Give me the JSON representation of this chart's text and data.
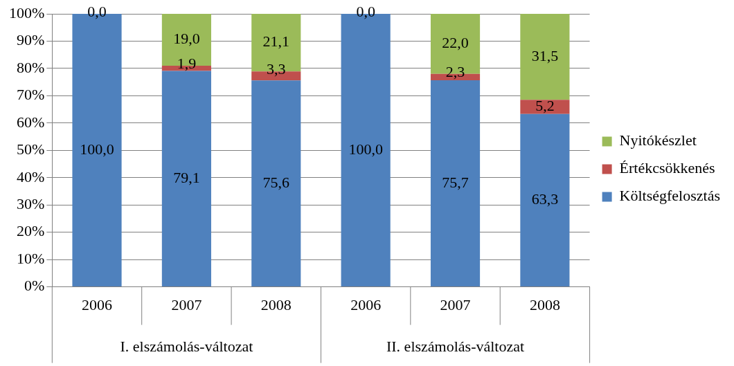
{
  "chart_data": {
    "type": "bar",
    "stacked": true,
    "categories": [
      "2006",
      "2007",
      "2008",
      "2006",
      "2007",
      "2008"
    ],
    "series": [
      {
        "name": "Költségfelosztás",
        "color": "#4f81bd",
        "values": [
          100,
          79.1,
          75.6,
          100,
          75.7,
          63.3
        ],
        "value_labels": [
          "100,0",
          "79,1",
          "75,6",
          "100,0",
          "75,7",
          "63,3"
        ]
      },
      {
        "name": "Értékcsökkenés",
        "color": "#c0504d",
        "values": [
          0,
          1.9,
          3.3,
          0,
          2.3,
          5.2
        ],
        "value_labels": [
          null,
          "1,9",
          "3,3",
          null,
          "2,3",
          "5,2"
        ]
      },
      {
        "name": "Nyitókészlet",
        "color": "#9bbb59",
        "values": [
          0,
          19,
          21.1,
          0,
          22,
          31.5
        ],
        "value_labels": [
          "0,0",
          "19,0",
          "21,1",
          "0,0",
          "22,0",
          "31,5"
        ]
      }
    ],
    "ylim": [
      0,
      100
    ],
    "yticks": [
      {
        "value": 0,
        "label": "0%"
      },
      {
        "value": 10,
        "label": "10%"
      },
      {
        "value": 20,
        "label": "20%"
      },
      {
        "value": 30,
        "label": "30%"
      },
      {
        "value": 40,
        "label": "40%"
      },
      {
        "value": 50,
        "label": "50%"
      },
      {
        "value": 60,
        "label": "60%"
      },
      {
        "value": 70,
        "label": "70%"
      },
      {
        "value": 80,
        "label": "80%"
      },
      {
        "value": 90,
        "label": "90%"
      },
      {
        "value": 100,
        "label": "100%"
      }
    ],
    "grid": "y",
    "legend": "right",
    "annotations": [
      "I. elszámolás-változat",
      "II. elszámolás-változat"
    ]
  }
}
